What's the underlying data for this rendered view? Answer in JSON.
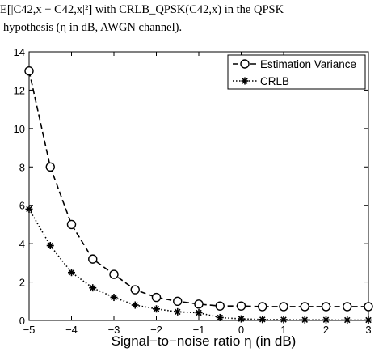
{
  "caption": {
    "line1": "E[|C42,x − C42,x|²]  with  CRLB_QPSK(C42,x)  in  the  QPSK",
    "line2": "hypothesis (η in dB, AWGN channel)."
  },
  "chart_data": {
    "type": "line",
    "xlabel": "Signal−to−noise ratio  η (in dB)",
    "ylabel": "",
    "xlim": [
      -5,
      3
    ],
    "ylim": [
      0,
      14
    ],
    "x_ticks": [
      -5,
      -4,
      -3,
      -2,
      -1,
      0,
      1,
      2,
      3
    ],
    "y_ticks": [
      0,
      2,
      4,
      6,
      8,
      10,
      12,
      14
    ],
    "x_tick_labels": [
      "−5",
      "−4",
      "−3",
      "−2",
      "−1",
      "0",
      "1",
      "2",
      "3"
    ],
    "y_tick_labels": [
      "0",
      "2",
      "4",
      "6",
      "8",
      "10",
      "12",
      "14"
    ],
    "grid": false,
    "legend_position": "top-right",
    "x": [
      -5,
      -4.5,
      -4,
      -3.5,
      -3,
      -2.5,
      -2,
      -1.5,
      -1,
      -0.5,
      0,
      0.5,
      1,
      1.5,
      2,
      2.5,
      3
    ],
    "series": [
      {
        "name": "Estimation Variance",
        "marker": "circle",
        "line_style": "dashed",
        "color": "#000000",
        "values": [
          13.0,
          8.0,
          5.0,
          3.2,
          2.4,
          1.6,
          1.2,
          1.0,
          0.85,
          0.75,
          0.75,
          0.72,
          0.72,
          0.72,
          0.72,
          0.72,
          0.72
        ]
      },
      {
        "name": "CRLB",
        "marker": "asterisk",
        "line_style": "dotted",
        "color": "#000000",
        "values": [
          5.8,
          3.9,
          2.5,
          1.7,
          1.2,
          0.8,
          0.6,
          0.45,
          0.4,
          0.15,
          0.08,
          0.05,
          0.04,
          0.03,
          0.03,
          0.02,
          0.02
        ]
      }
    ]
  }
}
